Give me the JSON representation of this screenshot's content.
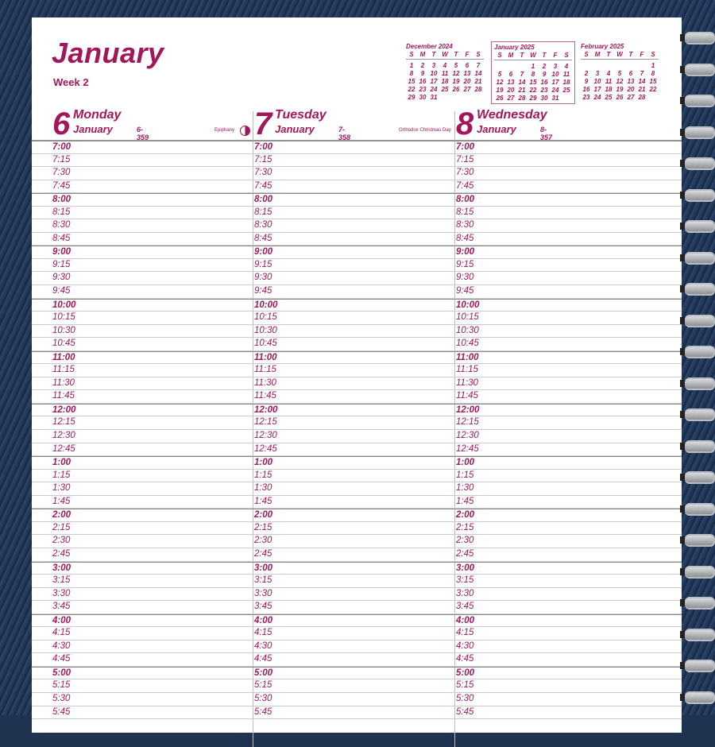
{
  "header": {
    "month": "January",
    "week": "Week 2"
  },
  "mini_calendars": [
    {
      "name": "December 2024",
      "days": [
        "S",
        "M",
        "T",
        "W",
        "T",
        "F",
        "S"
      ],
      "cells": [
        "1",
        "2",
        "3",
        "4",
        "5",
        "6",
        "7",
        "8",
        "9",
        "10",
        "11",
        "12",
        "13",
        "14",
        "15",
        "16",
        "17",
        "18",
        "19",
        "20",
        "21",
        "22",
        "23",
        "24",
        "25",
        "26",
        "27",
        "28",
        "29",
        "30",
        "31",
        "",
        "",
        "",
        ""
      ],
      "highlighted": false
    },
    {
      "name": "January 2025",
      "days": [
        "S",
        "M",
        "T",
        "W",
        "T",
        "F",
        "S"
      ],
      "cells": [
        "",
        "",
        "",
        "1",
        "2",
        "3",
        "4",
        "5",
        "6",
        "7",
        "8",
        "9",
        "10",
        "11",
        "12",
        "13",
        "14",
        "15",
        "16",
        "17",
        "18",
        "19",
        "20",
        "21",
        "22",
        "23",
        "24",
        "25",
        "26",
        "27",
        "28",
        "29",
        "30",
        "31",
        ""
      ],
      "highlighted": true
    },
    {
      "name": "February 2025",
      "days": [
        "S",
        "M",
        "T",
        "W",
        "T",
        "F",
        "S"
      ],
      "cells": [
        "",
        "",
        "",
        "",
        "",
        "",
        "1",
        "2",
        "3",
        "4",
        "5",
        "6",
        "7",
        "8",
        "9",
        "10",
        "11",
        "12",
        "13",
        "14",
        "15",
        "16",
        "17",
        "18",
        "19",
        "20",
        "21",
        "22",
        "23",
        "24",
        "25",
        "26",
        "27",
        "28",
        ""
      ],
      "highlighted": false
    }
  ],
  "days": [
    {
      "num": "6",
      "name": "Monday",
      "month": "January",
      "dayno": "6-359",
      "holiday": "Epiphany",
      "moon": "first-quarter-moon-icon"
    },
    {
      "num": "7",
      "name": "Tuesday",
      "month": "January",
      "dayno": "7-358",
      "holiday": "Orthodox Christmas Day"
    },
    {
      "num": "8",
      "name": "Wednesday",
      "month": "January",
      "dayno": "8-357",
      "holiday": ""
    }
  ],
  "times": [
    "7:00",
    "7:15",
    "7:30",
    "7:45",
    "8:00",
    "8:15",
    "8:30",
    "8:45",
    "9:00",
    "9:15",
    "9:30",
    "9:45",
    "10:00",
    "10:15",
    "10:30",
    "10:45",
    "11:00",
    "11:15",
    "11:30",
    "11:45",
    "12:00",
    "12:15",
    "12:30",
    "12:45",
    "1:00",
    "1:15",
    "1:30",
    "1:45",
    "2:00",
    "2:15",
    "2:30",
    "2:45",
    "3:00",
    "3:15",
    "3:30",
    "3:45",
    "4:00",
    "4:15",
    "4:30",
    "4:45",
    "5:00",
    "5:15",
    "5:30",
    "5:45"
  ],
  "colors": {
    "accent": "#a3175a",
    "cover": "#1f3350"
  }
}
